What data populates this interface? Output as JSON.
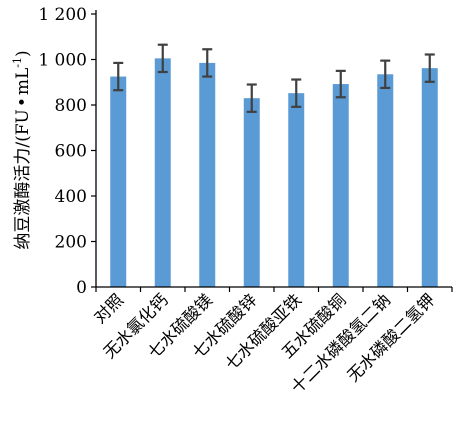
{
  "chart_data": {
    "type": "bar",
    "ylabel": "纳豆激酶活力/",
    "yunit_open": "(",
    "yunit_fu": "FU",
    "yunit_dot": "•",
    "yunit_ml": "mL",
    "yunit_sup": "-1",
    "yunit_close": ")",
    "xlabel": "",
    "ylim": [
      0,
      1200
    ],
    "yticks": [
      0,
      200,
      400,
      600,
      800,
      1000,
      1200
    ],
    "ytick_labels": [
      "0",
      "200",
      "400",
      "600",
      "800",
      "1 000",
      "1 200"
    ],
    "categories": [
      "对照",
      "无水氯化钙",
      "七水硫酸镁",
      "七水硫酸锌",
      "七水硫酸亚铁",
      "五水硫酸铜",
      "十二水磷酸氢二钠",
      "无水磷酸二氢钾"
    ],
    "values": [
      925,
      1005,
      985,
      830,
      852,
      892,
      935,
      962
    ],
    "errors": [
      60,
      60,
      60,
      60,
      60,
      58,
      60,
      60
    ],
    "bar_color": "#5b9bd5",
    "error_color": "#404040",
    "grid": false,
    "legend": "none"
  }
}
